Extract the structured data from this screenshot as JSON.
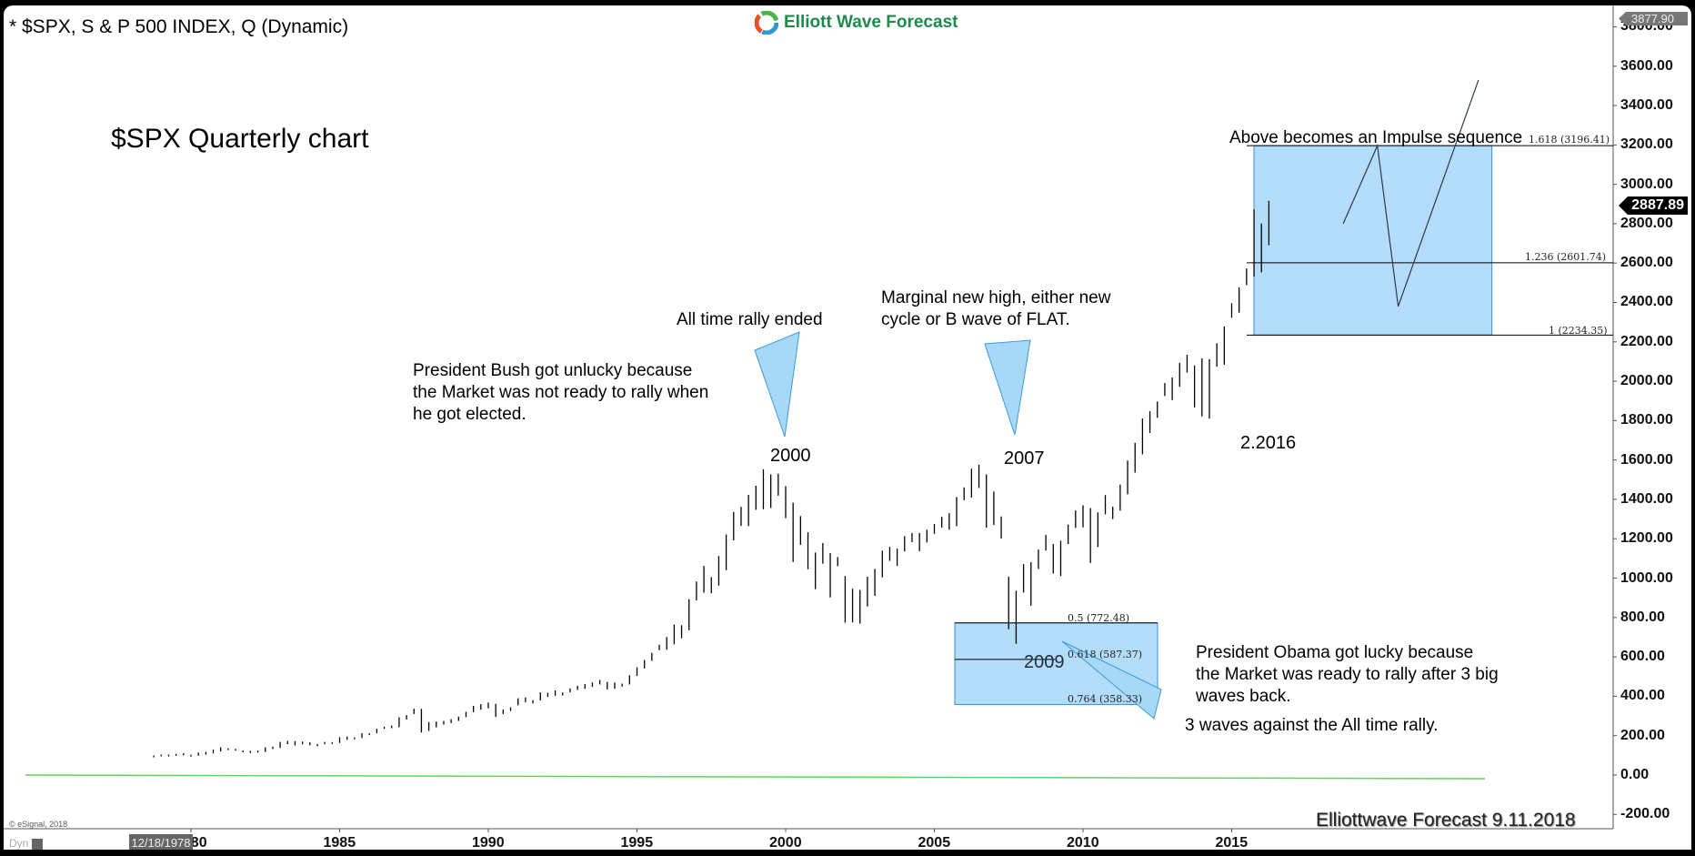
{
  "header": {
    "symbol_title": "* $SPX, S & P 500 INDEX, Q (Dynamic)",
    "logo_text": "Elliott Wave Forecast"
  },
  "chart_data": {
    "type": "bar",
    "title": "$SPX Quarterly chart",
    "symbol": "$SPX, S & P 500 INDEX",
    "interval": "Quarterly",
    "xlabel": "",
    "ylabel": "",
    "ylim": [
      -200,
      3877.9
    ],
    "y_ticks": [
      "3800.00",
      "3600.00",
      "3400.00",
      "3200.00",
      "3000.00",
      "2800.00",
      "2600.00",
      "2400.00",
      "2200.00",
      "2000.00",
      "1800.00",
      "1600.00",
      "1400.00",
      "1200.00",
      "1000.00",
      "800.00",
      "600.00",
      "400.00",
      "200.00",
      "0.00",
      "-200.00"
    ],
    "x_ticks": [
      "1980",
      "1985",
      "1990",
      "1995",
      "2000",
      "2005",
      "2010",
      "2015"
    ],
    "current_price": "2887.89",
    "max_price_label": "3877.90",
    "cursor_date": "12/18/1978",
    "grid": false,
    "start_year": 1978.75,
    "bars": [
      [
        99,
        94
      ],
      [
        104,
        96
      ],
      [
        104,
        97
      ],
      [
        107,
        98
      ],
      [
        111,
        100
      ],
      [
        103,
        96
      ],
      [
        114,
        98
      ],
      [
        118,
        103
      ],
      [
        129,
        110
      ],
      [
        141,
        120
      ],
      [
        136,
        128
      ],
      [
        133,
        126
      ],
      [
        125,
        117
      ],
      [
        123,
        112
      ],
      [
        124,
        114
      ],
      [
        141,
        117
      ],
      [
        144,
        132
      ],
      [
        168,
        138
      ],
      [
        173,
        157
      ],
      [
        172,
        150
      ],
      [
        170,
        156
      ],
      [
        166,
        151
      ],
      [
        157,
        146
      ],
      [
        168,
        156
      ],
      [
        167,
        160
      ],
      [
        192,
        163
      ],
      [
        195,
        179
      ],
      [
        191,
        182
      ],
      [
        212,
        188
      ],
      [
        212,
        203
      ],
      [
        235,
        212
      ],
      [
        245,
        235
      ],
      [
        251,
        238
      ],
      [
        293,
        243
      ],
      [
        304,
        282
      ],
      [
        337,
        310
      ],
      [
        336,
        216
      ],
      [
        269,
        224
      ],
      [
        272,
        242
      ],
      [
        275,
        256
      ],
      [
        283,
        264
      ],
      [
        297,
        275
      ],
      [
        321,
        294
      ],
      [
        351,
        319
      ],
      [
        360,
        332
      ],
      [
        368,
        339
      ],
      [
        362,
        295
      ],
      [
        333,
        310
      ],
      [
        344,
        325
      ],
      [
        390,
        354
      ],
      [
        394,
        370
      ],
      [
        380,
        364
      ],
      [
        420,
        379
      ],
      [
        418,
        397
      ],
      [
        430,
        402
      ],
      [
        420,
        404
      ],
      [
        440,
        420
      ],
      [
        453,
        432
      ],
      [
        462,
        438
      ],
      [
        470,
        448
      ],
      [
        483,
        460
      ],
      [
        473,
        435
      ],
      [
        470,
        438
      ],
      [
        464,
        449
      ],
      [
        507,
        460
      ],
      [
        547,
        503
      ],
      [
        584,
        541
      ],
      [
        621,
        580
      ],
      [
        662,
        634
      ],
      [
        701,
        636
      ],
      [
        764,
        664
      ],
      [
        761,
        695
      ],
      [
        893,
        735
      ],
      [
        983,
        887
      ],
      [
        1062,
        926
      ],
      [
        1005,
        923
      ],
      [
        1112,
        962
      ],
      [
        1222,
        1040
      ],
      [
        1336,
        1192
      ],
      [
        1362,
        1265
      ],
      [
        1423,
        1264
      ],
      [
        1469,
        1347
      ],
      [
        1553,
        1350
      ],
      [
        1527,
        1356
      ],
      [
        1530,
        1419
      ],
      [
        1467,
        1305
      ],
      [
        1383,
        1082
      ],
      [
        1315,
        1169
      ],
      [
        1233,
        1045
      ],
      [
        1130,
        944
      ],
      [
        1178,
        1073
      ],
      [
        1127,
        902
      ],
      [
        1107,
        1061
      ],
      [
        1011,
        774
      ],
      [
        946,
        775
      ],
      [
        940,
        769
      ],
      [
        1007,
        856
      ],
      [
        1047,
        910
      ],
      [
        1140,
        1004
      ],
      [
        1159,
        1088
      ],
      [
        1150,
        1062
      ],
      [
        1213,
        1136
      ],
      [
        1229,
        1183
      ],
      [
        1229,
        1137
      ],
      [
        1246,
        1181
      ],
      [
        1275,
        1225
      ],
      [
        1311,
        1257
      ],
      [
        1330,
        1246
      ],
      [
        1412,
        1264
      ],
      [
        1461,
        1396
      ],
      [
        1556,
        1409
      ],
      [
        1576,
        1458
      ],
      [
        1527,
        1256
      ],
      [
        1440,
        1270
      ],
      [
        1313,
        1201
      ],
      [
        1007,
        741
      ],
      [
        936,
        667
      ],
      [
        1071,
        927
      ],
      [
        1081,
        860
      ],
      [
        1145,
        1047
      ],
      [
        1220,
        1140
      ],
      [
        1173,
        1023
      ],
      [
        1190,
        1010
      ],
      [
        1272,
        1173
      ],
      [
        1344,
        1255
      ],
      [
        1370,
        1258
      ],
      [
        1356,
        1077
      ],
      [
        1334,
        1158
      ],
      [
        1422,
        1324
      ],
      [
        1363,
        1300
      ],
      [
        1475,
        1343
      ],
      [
        1597,
        1426
      ],
      [
        1687,
        1536
      ],
      [
        1811,
        1629
      ],
      [
        1848,
        1737
      ],
      [
        1897,
        1814
      ],
      [
        1991,
        1925
      ],
      [
        2019,
        1904
      ],
      [
        2093,
        1972
      ],
      [
        2134,
        2044
      ],
      [
        2080,
        1867
      ],
      [
        2116,
        1821
      ],
      [
        2112,
        1810
      ],
      [
        2193,
        2074
      ],
      [
        2278,
        2084
      ],
      [
        2396,
        2322
      ],
      [
        2477,
        2348
      ],
      [
        2573,
        2488
      ],
      [
        2873,
        2532
      ],
      [
        2801,
        2553
      ],
      [
        2916,
        2691
      ]
    ],
    "projection_path": [
      [
        2018.75,
        2800
      ],
      [
        2019.9,
        3196.41
      ],
      [
        2020.6,
        2380
      ],
      [
        2023.3,
        3530
      ]
    ],
    "fib_extension": {
      "box": {
        "x0": 2015.75,
        "x1": 2023.75,
        "top": 3196.41,
        "bottom": 2234.35
      },
      "levels": [
        {
          "ratio": "1.618",
          "value": "3196.41",
          "label": "1.618 (3196.41)"
        },
        {
          "ratio": "1.236",
          "value": "2601.74",
          "label": "1.236 (2601.74)"
        },
        {
          "ratio": "1",
          "value": "2234.35",
          "label": "1 (2234.35)"
        }
      ]
    },
    "fib_retracement": {
      "box": {
        "x0": 2005.8,
        "x1": 2012.6,
        "top": 772.48,
        "bottom": 358.33
      },
      "levels": [
        {
          "ratio": "0.5",
          "value": "772.48",
          "label": "0.5 (772.48)"
        },
        {
          "ratio": "0.618",
          "value": "587.37",
          "label": "0.618 (587.37)"
        },
        {
          "ratio": "0.764",
          "value": "358.33",
          "label": "0.764 (358.33)"
        }
      ]
    },
    "annotations": [
      {
        "id": "peak2000",
        "text": "2000"
      },
      {
        "id": "peak2007",
        "text": "2007"
      },
      {
        "id": "low2009",
        "text": "2009"
      },
      {
        "id": "low2016",
        "text": "2.2016"
      },
      {
        "id": "rally_ended",
        "text": "All time rally ended"
      },
      {
        "id": "marginal_high",
        "lines": [
          "Marginal new high, either new",
          "cycle or B wave of FLAT."
        ]
      },
      {
        "id": "bush",
        "lines": [
          "President Bush got unlucky because",
          "the Market was not ready to rally when",
          "he got elected."
        ]
      },
      {
        "id": "obama",
        "lines": [
          "President Obama got lucky because",
          "the Market was ready to rally after 3 big",
          "waves back."
        ]
      },
      {
        "id": "three_waves",
        "text": "3 waves against the All time rally."
      },
      {
        "id": "impulse",
        "text": "Above becomes an Impulse sequence"
      }
    ],
    "colors": {
      "bars": "#000000",
      "fib_box": "#b3ddfb",
      "fib_box_border": "#3a8fd0",
      "arrow": "#a8d8f8",
      "zero_line": "#5cd65c",
      "projection": "#2b3a4a"
    }
  },
  "footer": {
    "watermark": "Elliottwave Forecast 9.11.2018",
    "copyright": "© eSignal, 2018",
    "dyn_label": "Dyn"
  }
}
